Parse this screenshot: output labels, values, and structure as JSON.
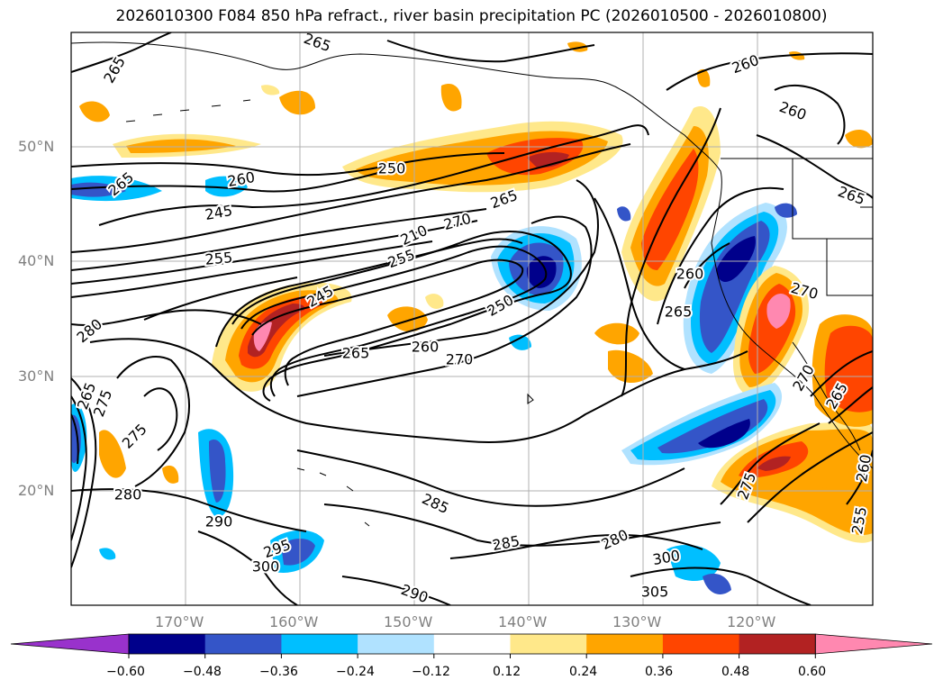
{
  "title": "2026010300 F084 850 hPa refract., river basin precipitation PC (2026010500 - 2026010800)",
  "map": {
    "lon_range": [
      -180,
      -110
    ],
    "lat_range": [
      10,
      60
    ],
    "lat_labels": [
      "50°N",
      "40°N",
      "30°N",
      "20°N"
    ],
    "lon_labels": [
      "170°W",
      "160°W",
      "150°W",
      "140°W",
      "130°W",
      "120°W"
    ],
    "gridlines": true
  },
  "contour_labels": [
    "265",
    "265",
    "260",
    "245",
    "255",
    "250",
    "265",
    "270",
    "210",
    "255",
    "245",
    "250",
    "260",
    "265",
    "270",
    "265",
    "260",
    "260",
    "265",
    "270",
    "260",
    "280",
    "265",
    "275",
    "280",
    "275",
    "290",
    "295",
    "300",
    "285",
    "285",
    "280",
    "300",
    "305",
    "290",
    "270",
    "265",
    "275",
    "265",
    "260",
    "255"
  ],
  "colorbar": {
    "tick_labels": [
      "−0.60",
      "−0.48",
      "−0.36",
      "−0.24",
      "−0.12",
      "0.12",
      "0.24",
      "0.36",
      "0.48",
      "0.60"
    ],
    "colors": [
      "#9932cc",
      "#00008b",
      "#3455c8",
      "#00bfff",
      "#b0e2ff",
      "#ffffff",
      "#ffe88a",
      "#ffa500",
      "#ff4500",
      "#b22222",
      "#ff88b0"
    ],
    "extend": "both"
  }
}
